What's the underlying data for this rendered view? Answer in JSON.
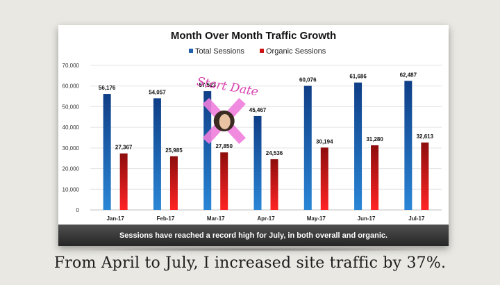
{
  "chart_data": {
    "type": "bar",
    "title": "Month Over Month Traffic Growth",
    "categories": [
      "Jan-17",
      "Feb-17",
      "Mar-17",
      "Apr-17",
      "May-17",
      "Jun-17",
      "Jul-17"
    ],
    "series": [
      {
        "name": "Total Sessions",
        "color": "#1f5fad",
        "values": [
          56176,
          54057,
          57523,
          45467,
          60076,
          61686,
          62487
        ],
        "labels": [
          "56,176",
          "54,057",
          "57,523",
          "45,467",
          "60,076",
          "61,686",
          "62,487"
        ]
      },
      {
        "name": "Organic Sessions",
        "color": "#cc1414",
        "values": [
          27367,
          25985,
          27850,
          24536,
          30194,
          31280,
          32613
        ],
        "labels": [
          "27,367",
          "25,985",
          "27,850",
          "24,536",
          "30,194",
          "31,280",
          "32,613"
        ]
      }
    ],
    "ylim": [
      0,
      70000
    ],
    "yticks": [
      "0",
      "10,000",
      "20,000",
      "30,000",
      "40,000",
      "50,000",
      "60,000",
      "70,000"
    ],
    "grid": true,
    "legend": "top-center",
    "annotation": {
      "text": "Start Date",
      "category": "Mar-17",
      "color": "#d93fae"
    }
  },
  "banner_text": "Sessions have reached a record high for July, in both overall and organic.",
  "caption": "From April to July, I increased site traffic by 37%."
}
